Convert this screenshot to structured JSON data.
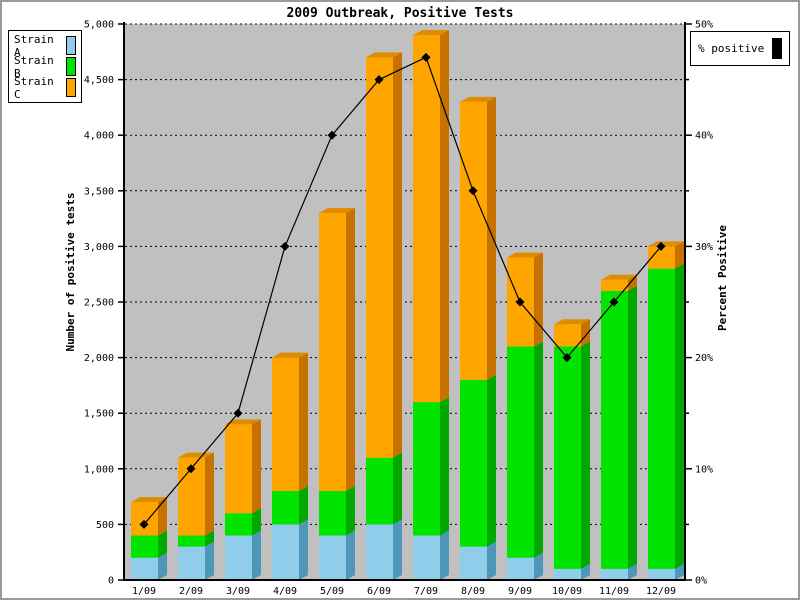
{
  "title": "2009 Outbreak, Positive Tests",
  "axes": {
    "left_title": "Number of positive tests",
    "right_title": "Percent Positive"
  },
  "legend": {
    "strains": [
      {
        "label": "Strain A",
        "color": "#8FCDEA"
      },
      {
        "label": "Strain B",
        "color": "#00E400"
      },
      {
        "label": "Strain C",
        "color": "#FFA500"
      }
    ],
    "percent": {
      "label": "% positive",
      "color": "#000000"
    }
  },
  "colors": {
    "plot_background": "#C0C0C0",
    "grid": "#000000",
    "line": "#000000",
    "strain_a": {
      "front": "#8FCDEA",
      "side": "#4E97B8",
      "top": "#B7DFF2"
    },
    "strain_b": {
      "front": "#00E400",
      "side": "#00A800",
      "top": "#00C800"
    },
    "strain_c": {
      "front": "#FFA500",
      "side": "#C67100",
      "top": "#E08C00"
    }
  },
  "chart_data": {
    "type": "bar",
    "stacked": true,
    "title": "2009 Outbreak, Positive Tests",
    "categories": [
      "1/09",
      "2/09",
      "3/09",
      "4/09",
      "5/09",
      "6/09",
      "7/09",
      "8/09",
      "9/09",
      "10/09",
      "11/09",
      "12/09"
    ],
    "series": [
      {
        "name": "Strain A",
        "values": [
          200,
          300,
          400,
          500,
          400,
          500,
          400,
          300,
          200,
          100,
          100,
          100
        ]
      },
      {
        "name": "Strain B",
        "values": [
          200,
          100,
          200,
          300,
          400,
          600,
          1200,
          1500,
          1900,
          2000,
          2500,
          2700
        ]
      },
      {
        "name": "Strain C",
        "values": [
          300,
          700,
          800,
          1200,
          2500,
          3600,
          3300,
          2500,
          800,
          200,
          100,
          200
        ]
      }
    ],
    "bar_totals": [
      700,
      1100,
      1400,
      2000,
      3300,
      4700,
      4900,
      4300,
      2900,
      2300,
      2700,
      3000
    ],
    "line_overlay": {
      "name": "% positive",
      "type": "line",
      "axis": "right",
      "marker": "diamond",
      "values": [
        5,
        10,
        15,
        30,
        40,
        45,
        47,
        35,
        25,
        20,
        25,
        30
      ]
    },
    "xlabel": "",
    "ylabel": "Number of positive tests",
    "ylabel_right": "Percent Positive",
    "ylim": [
      0,
      5000
    ],
    "ytick_step": 500,
    "left_tick_labels": [
      "0",
      "500",
      "1,000",
      "1,500",
      "2,000",
      "2,500",
      "3,000",
      "3,500",
      "4,000",
      "4,500",
      "5,000"
    ],
    "ylim_right": [
      0,
      50
    ],
    "ytick_step_right_major": 10,
    "ytick_step_right_minor": 5,
    "right_tick_labels": [
      "0%",
      "10%",
      "20%",
      "30%",
      "40%",
      "50%"
    ],
    "grid": "horizontal dotted every 500",
    "legend_position": "top-left (strains), top-right (% positive)"
  }
}
